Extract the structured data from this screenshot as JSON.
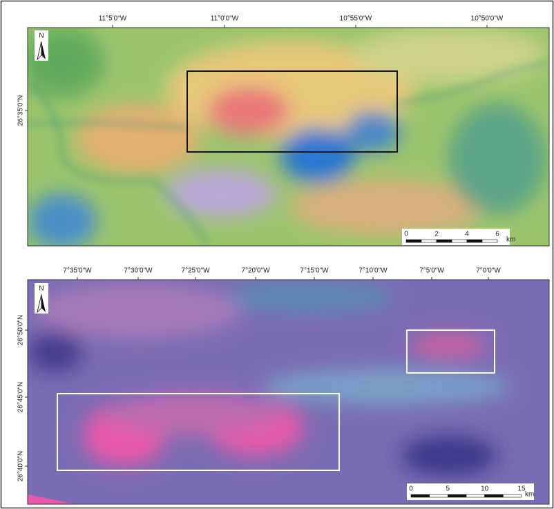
{
  "panels": [
    {
      "north": "N",
      "x_labels": [
        "11°5'0\"W",
        "11°0'0\"W",
        "10°55'0\"W",
        "10°50'0\"W"
      ],
      "y_labels": [
        "26°35'0\"N"
      ],
      "scale_labels": [
        "0",
        "2",
        "4",
        "6"
      ],
      "scale_unit": "km"
    },
    {
      "north": "N",
      "x_labels": [
        "7°35'0\"W",
        "7°30'0\"W",
        "7°25'0\"W",
        "7°20'0\"W",
        "7°15'0\"W",
        "7°10'0\"W",
        "7°5'0\"W",
        "7°0'0\"W"
      ],
      "y_labels": [
        "26°50'0\"N",
        "26°45'0\"N",
        "26°40'0\"N"
      ],
      "scale_labels": [
        "0",
        "5",
        "10",
        "15"
      ],
      "scale_unit": "km"
    }
  ]
}
